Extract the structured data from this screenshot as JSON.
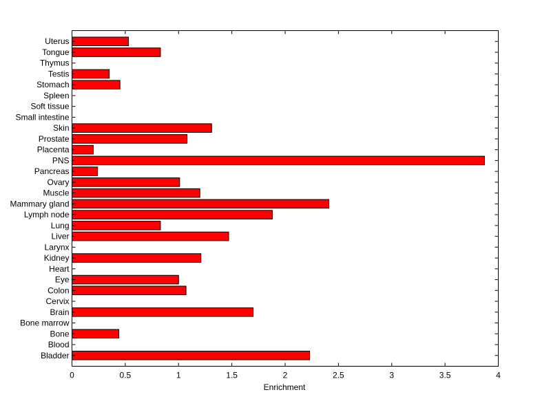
{
  "chart_data": {
    "type": "bar",
    "orientation": "horizontal",
    "title": "",
    "xlabel": "Enrichment",
    "ylabel": "",
    "xlim": [
      0,
      4
    ],
    "xticks": [
      0,
      0.5,
      1,
      1.5,
      2,
      2.5,
      3,
      3.5,
      4
    ],
    "xtick_labels": [
      "0",
      "0.5",
      "1",
      "1.5",
      "2",
      "2.5",
      "3",
      "3.5",
      "4"
    ],
    "grid": false,
    "legend": "none",
    "bar_color": "#ff0000",
    "bar_edge_color": "#000000",
    "categories": [
      "Bladder",
      "Blood",
      "Bone",
      "Bone marrow",
      "Brain",
      "Cervix",
      "Colon",
      "Eye",
      "Heart",
      "Kidney",
      "Larynx",
      "Liver",
      "Lung",
      "Lymph node",
      "Mammary gland",
      "Muscle",
      "Ovary",
      "Pancreas",
      "PNS",
      "Placenta",
      "Prostate",
      "Skin",
      "Small intestine",
      "Soft tissue",
      "Spleen",
      "Stomach",
      "Testis",
      "Thymus",
      "Tongue",
      "Uterus"
    ],
    "values": [
      2.23,
      0,
      0.44,
      0,
      1.7,
      0,
      1.07,
      1.0,
      0,
      1.21,
      0,
      1.47,
      0.83,
      1.88,
      2.41,
      1.2,
      1.01,
      0.24,
      3.87,
      0.2,
      1.08,
      1.31,
      0,
      0,
      0,
      0.45,
      0.35,
      0,
      0.83,
      0.53
    ]
  }
}
